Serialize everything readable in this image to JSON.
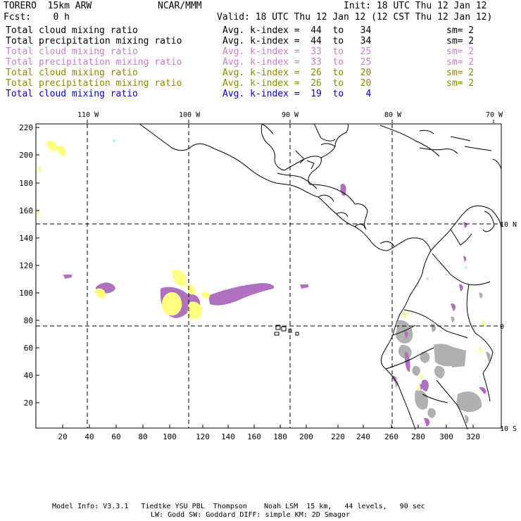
{
  "header": {
    "title": "TORERO  15km ARW",
    "center": "NCAR/MMM",
    "init": "Init: 18 UTC Thu 12 Jan 12",
    "fcst": "Fcst:    0 h",
    "valid": "Valid: 18 UTC Thu 12 Jan 12 (12 CST Thu 12 Jan 12)"
  },
  "legend": [
    {
      "field": "Total cloud mixing ratio",
      "index": "Avg. k-index =  44  to   34",
      "sm": "sm= 2",
      "color": "#000000"
    },
    {
      "field": "Total precipitation mixing ratio",
      "index": "Avg. k-index =  44  to   34",
      "sm": "sm= 2",
      "color": "#000000"
    },
    {
      "field": "Total cloud mixing ratio",
      "index": "Avg. k-index =  33  to   25",
      "sm": "sm= 2",
      "color": "#c77fc7"
    },
    {
      "field": "Total precipitation mixing ratio",
      "index": "Avg. k-index =  33  to   25",
      "sm": "sm= 2",
      "color": "#c77fc7"
    },
    {
      "field": "Total cloud mixing ratio",
      "index": "Avg. k-index =  26  to   20",
      "sm": "sm= 2",
      "color": "#8a8a00"
    },
    {
      "field": "Total precipitation mixing ratio",
      "index": "Avg. k-index =  26  to   20",
      "sm": "sm= 2",
      "color": "#8a8a00"
    },
    {
      "field": "Total cloud mixing ratio",
      "index": "Avg. k-index =  19  to    4",
      "sm": "",
      "color": "#0000cc"
    }
  ],
  "map": {
    "lon_labels": [
      "110 W",
      "100 W",
      "90 W",
      "80 W",
      "70 W"
    ],
    "lat_labels": [
      "10 N",
      "0",
      "10 S"
    ],
    "y_ticks": [
      "220",
      "200",
      "180",
      "160",
      "140",
      "120",
      "100",
      "80",
      "60",
      "40",
      "20"
    ],
    "x_ticks": [
      "20",
      "40",
      "60",
      "80",
      "100",
      "120",
      "140",
      "160",
      "180",
      "200",
      "220",
      "240",
      "260",
      "280",
      "300",
      "320"
    ],
    "colors": {
      "yellow": "#ffff80",
      "purple": "#b070c0",
      "gray": "#b0b0b0",
      "cyan": "#c0f0ff"
    }
  },
  "footer": {
    "line1": "Model Info: V3.3.1   Tiedtke YSU PBL  Thompson    Noah LSM  15 km,   44 levels,   90 sec",
    "line2": "LW: Godd SW: Goddard DIFF: simple KM: 2D Smagor"
  }
}
